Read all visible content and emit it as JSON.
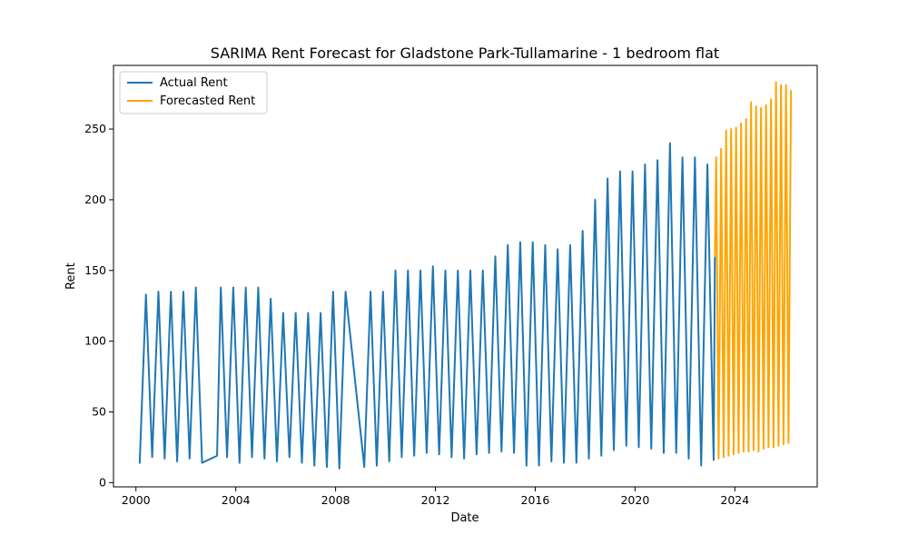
{
  "chart_data": {
    "type": "line",
    "title": "SARIMA Rent Forecast for Gladstone Park-Tullamarine - 1 bedroom flat",
    "xlabel": "Date",
    "ylabel": "Rent",
    "x_ticks": [
      "2000",
      "2004",
      "2008",
      "2012",
      "2016",
      "2020",
      "2024"
    ],
    "y_ticks": [
      "0",
      "50",
      "100",
      "150",
      "200",
      "250"
    ],
    "xlim": [
      1999.1,
      2027.3
    ],
    "ylim": [
      -3,
      295
    ],
    "grid": false,
    "legend_position": "top-left",
    "series": [
      {
        "name": "Actual Rent",
        "color": "#1f77b4",
        "x": [
          2000.15,
          2000.4,
          2000.65,
          2000.9,
          2001.15,
          2001.4,
          2001.65,
          2001.9,
          2002.15,
          2002.4,
          2002.65,
          2003.25,
          2003.4,
          2003.65,
          2003.9,
          2004.15,
          2004.4,
          2004.65,
          2004.9,
          2005.15,
          2005.4,
          2005.65,
          2005.9,
          2006.15,
          2006.4,
          2006.65,
          2006.9,
          2007.15,
          2007.4,
          2007.65,
          2007.9,
          2008.15,
          2008.4,
          2009.15,
          2009.4,
          2009.65,
          2009.9,
          2010.15,
          2010.4,
          2010.65,
          2010.9,
          2011.15,
          2011.4,
          2011.65,
          2011.9,
          2012.15,
          2012.4,
          2012.65,
          2012.9,
          2013.15,
          2013.4,
          2013.65,
          2013.9,
          2014.15,
          2014.4,
          2014.65,
          2014.9,
          2015.15,
          2015.4,
          2015.65,
          2015.9,
          2016.15,
          2016.4,
          2016.65,
          2016.9,
          2017.15,
          2017.4,
          2017.65,
          2017.9,
          2018.15,
          2018.4,
          2018.65,
          2018.9,
          2019.15,
          2019.4,
          2019.65,
          2019.9,
          2020.15,
          2020.4,
          2020.65,
          2020.9,
          2021.15,
          2021.4,
          2021.65,
          2021.9,
          2022.15,
          2022.4,
          2022.65,
          2022.9,
          2023.15,
          2023.2
        ],
        "y": [
          14,
          133,
          18,
          135,
          17,
          135,
          15,
          135,
          17,
          138,
          14,
          19,
          138,
          18,
          138,
          14,
          138,
          18,
          138,
          17,
          130,
          15,
          120,
          18,
          120,
          14,
          120,
          12,
          120,
          11,
          135,
          10,
          135,
          11,
          135,
          12,
          135,
          15,
          150,
          18,
          150,
          19,
          150,
          21,
          153,
          20,
          150,
          18,
          150,
          17,
          150,
          20,
          150,
          21,
          160,
          22,
          168,
          21,
          170,
          12,
          170,
          12,
          168,
          15,
          165,
          14,
          168,
          14,
          178,
          17,
          200,
          19,
          215,
          23,
          220,
          26,
          220,
          25,
          225,
          24,
          228,
          21,
          240,
          21,
          230,
          17,
          230,
          12,
          225,
          16,
          160
        ]
      },
      {
        "name": "Forecasted Rent",
        "color": "#ffa500",
        "x": [
          2023.2,
          2023.25,
          2023.35,
          2023.45,
          2023.55,
          2023.65,
          2023.75,
          2023.85,
          2023.95,
          2024.05,
          2024.15,
          2024.25,
          2024.35,
          2024.45,
          2024.55,
          2024.65,
          2024.75,
          2024.85,
          2024.95,
          2025.05,
          2025.15,
          2025.25,
          2025.35,
          2025.45,
          2025.55,
          2025.65,
          2025.75,
          2025.85,
          2025.95,
          2026.05,
          2026.15,
          2026.25
        ],
        "y": [
          160,
          230,
          17,
          236,
          18,
          249,
          19,
          250,
          20,
          251,
          21,
          254,
          22,
          257,
          22,
          269,
          23,
          266,
          22,
          265,
          24,
          267,
          25,
          271,
          25,
          283,
          26,
          281,
          27,
          281,
          28,
          277
        ]
      }
    ]
  }
}
